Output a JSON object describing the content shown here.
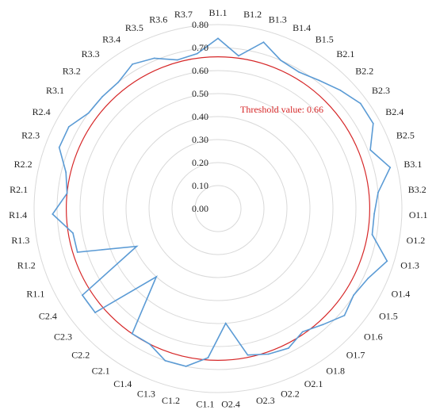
{
  "chart_data": {
    "type": "radar",
    "categories": [
      "B1.1",
      "B1.2",
      "B1.3",
      "B1.4",
      "B1.5",
      "B2.1",
      "B2.2",
      "B2.3",
      "B2.4",
      "B2.5",
      "B3.1",
      "B3.2",
      "O1.1",
      "O1.2",
      "O1.3",
      "O1.4",
      "O1.5",
      "O1.6",
      "O1.7",
      "O1.8",
      "O2.1",
      "O2.2",
      "O2.3",
      "O2.4",
      "C1.1",
      "C1.2",
      "C1.3",
      "C1.4",
      "C2.1",
      "C2.2",
      "C2.3",
      "C2.4",
      "R1.1",
      "R1.2",
      "R1.3",
      "R1.4",
      "R2.1",
      "R2.2",
      "R2.3",
      "R2.4",
      "R3.1",
      "R3.2",
      "R3.3",
      "R3.4",
      "R3.5",
      "R3.6",
      "R3.7"
    ],
    "series": [
      {
        "values": [
          0.74,
          0.67,
          0.75,
          0.7,
          0.69,
          0.71,
          0.74,
          0.77,
          0.77,
          0.71,
          0.77,
          0.7,
          0.68,
          0.68,
          0.77,
          0.72,
          0.7,
          0.72,
          0.68,
          0.65,
          0.68,
          0.67,
          0.65,
          0.5,
          0.65,
          0.7,
          0.7,
          0.66,
          0.66,
          0.4,
          0.7,
          0.7,
          0.39,
          0.64,
          0.64,
          0.72,
          0.66,
          0.68,
          0.74,
          0.74,
          0.7,
          0.7,
          0.7,
          0.73,
          0.71,
          0.67,
          0.68
        ],
        "color": "#5b9bd5"
      }
    ],
    "rticks": [
      "0.00",
      "0.10",
      "0.20",
      "0.30",
      "0.40",
      "0.50",
      "0.60",
      "0.70",
      "0.80"
    ],
    "rlim": [
      0,
      0.8
    ],
    "threshold": {
      "value": 0.66,
      "label": "Threshold value: 0.66",
      "color": "#d62728"
    },
    "grid": true
  }
}
